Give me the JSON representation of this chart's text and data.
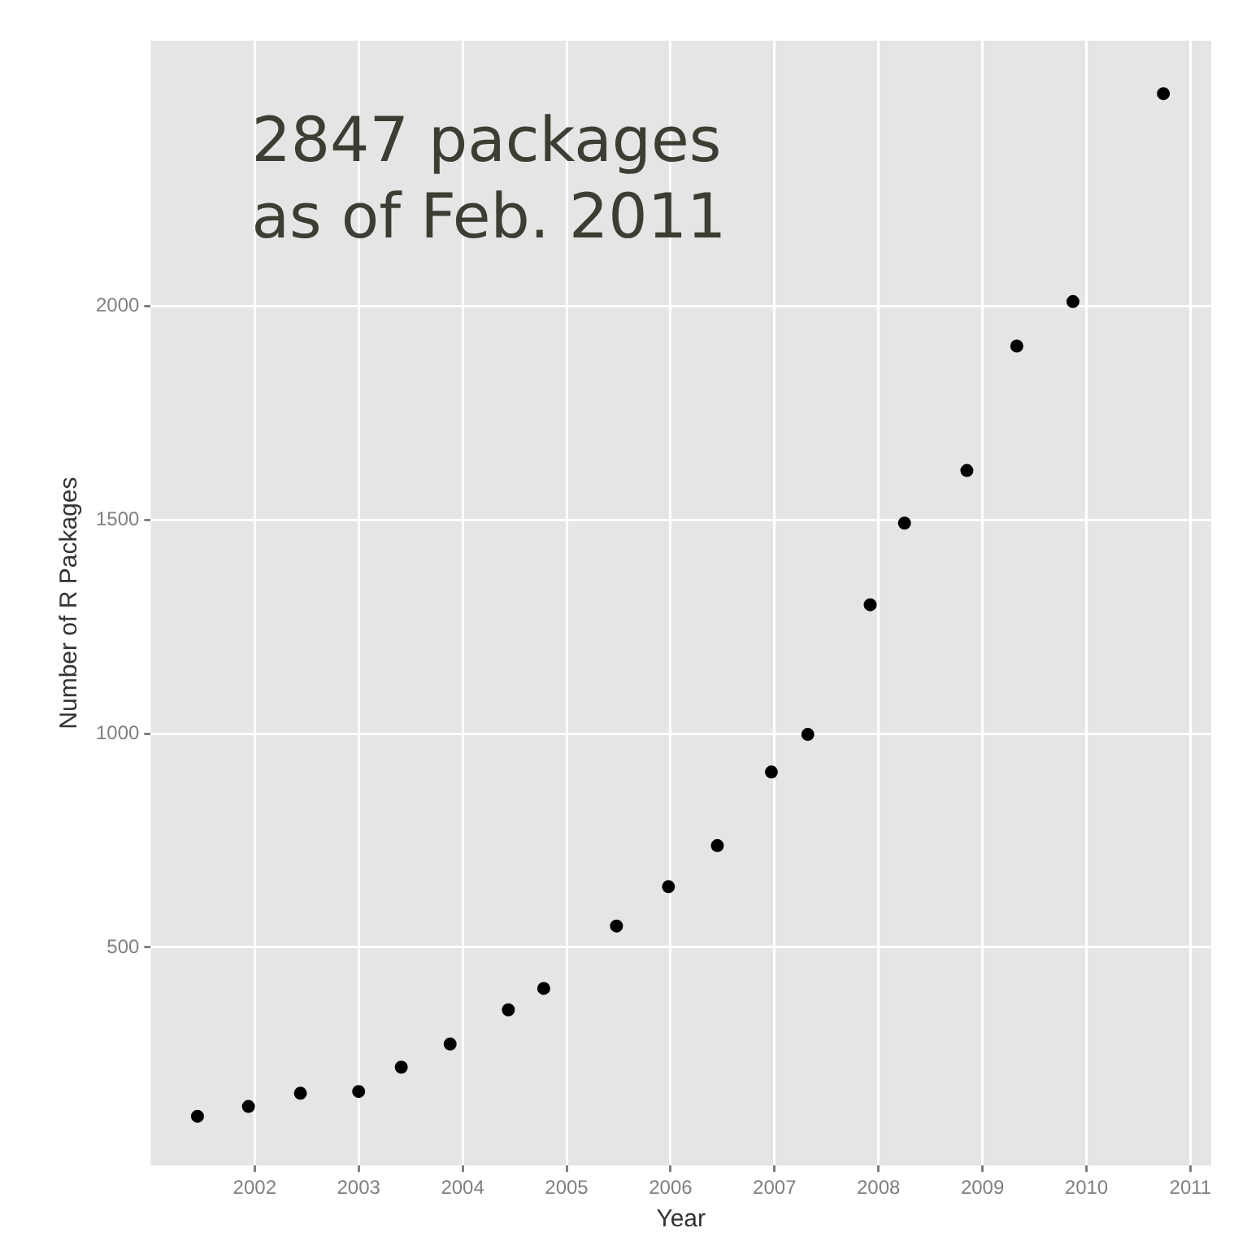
{
  "chart_data": {
    "type": "scatter",
    "xlabel": "Year",
    "ylabel": "Number of R Packages",
    "annotations": [
      "2847 packages\nas of Feb. 2011"
    ],
    "x": [
      2001.45,
      2001.94,
      2002.44,
      2003.0,
      2003.41,
      2003.88,
      2004.44,
      2004.78,
      2005.48,
      2005.98,
      2006.45,
      2006.97,
      2007.32,
      2007.92,
      2008.25,
      2008.85,
      2009.33,
      2009.87,
      2010.74
    ],
    "values": [
      105,
      128,
      159,
      163,
      220,
      274,
      354,
      404,
      550,
      642,
      738,
      910,
      998,
      1301,
      1492,
      1615,
      1906,
      2010,
      2496
    ],
    "color": "#000000",
    "marker": "circle",
    "xlim": [
      2001,
      2011.2
    ],
    "xticks": [
      2002,
      2003,
      2004,
      2005,
      2006,
      2007,
      2008,
      2009,
      2010,
      2011
    ],
    "ylim": [
      -10,
      2620
    ],
    "yticks": [
      500,
      1000,
      1500,
      2000
    ],
    "grid": true,
    "legend": false
  }
}
